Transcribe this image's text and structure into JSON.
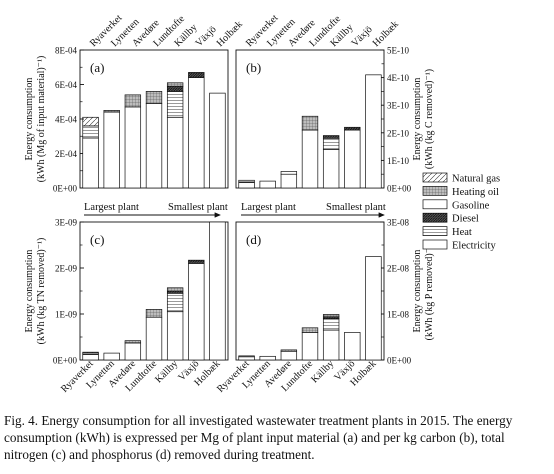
{
  "chart_data": [
    {
      "type": "bar",
      "stacked": true,
      "panel_label": "(a)",
      "categories": [
        "Ryaverket",
        "Lynetten",
        "Avedøre",
        "Lundtofte",
        "Källby",
        "Växjö",
        "Holbæk"
      ],
      "ylabel": "Energy consumption (kWh (Mg of input material)⁻¹)",
      "yticks": [
        "0E+00",
        "2E-04",
        "4E-04",
        "6E-04",
        "8E-04"
      ],
      "ylim": [
        0,
        0.0008
      ],
      "axis_side": "left",
      "series": [
        {
          "name": "Electricity",
          "values": [
            0.00029,
            0.00044,
            0.00047,
            0.00049,
            0.00041,
            0.00064,
            0.00055
          ]
        },
        {
          "name": "Heat",
          "values": [
            7e-05,
            0.0,
            0.0,
            0.0,
            0.00015,
            0.0,
            0.0
          ]
        },
        {
          "name": "Diesel",
          "values": [
            0.0,
            0.0,
            0.0,
            0.0,
            3e-05,
            3e-05,
            0.0
          ]
        },
        {
          "name": "Gasoline",
          "values": [
            0.0,
            0.0,
            0.0,
            0.0,
            0.0,
            0.0,
            0.0
          ]
        },
        {
          "name": "Heating oil",
          "values": [
            0.0,
            1e-05,
            7e-05,
            7e-05,
            2e-05,
            0.0,
            0.0
          ]
        },
        {
          "name": "Natural gas",
          "values": [
            5e-05,
            0.0,
            0.0,
            0.0,
            0.0,
            0.0,
            0.0
          ]
        }
      ]
    },
    {
      "type": "bar",
      "stacked": true,
      "panel_label": "(b)",
      "categories": [
        "Ryaverket",
        "Lynetten",
        "Avedøre",
        "Lundtofte",
        "Källby",
        "Växjö",
        "Holbæk"
      ],
      "ylabel": "Energy consumption (kWh (kg C removed)⁻¹)",
      "yticks": [
        "0E+00",
        "1E-10",
        "2E-10",
        "3E-10",
        "4E-10",
        "5E-10"
      ],
      "ylim": [
        0,
        5e-10
      ],
      "axis_side": "right",
      "series": [
        {
          "name": "Electricity",
          "values": [
            2e-11,
            2.5e-11,
            5e-11,
            2.1e-10,
            1.4e-10,
            2.1e-10,
            4.1e-10
          ]
        },
        {
          "name": "Heat",
          "values": [
            8e-12,
            0.0,
            0.0,
            0.0,
            4e-11,
            0.0,
            0.0
          ]
        },
        {
          "name": "Diesel",
          "values": [
            0.0,
            0.0,
            0.0,
            0.0,
            1e-11,
            1e-11,
            0.0
          ]
        },
        {
          "name": "Gasoline",
          "values": [
            0.0,
            0.0,
            1e-11,
            0.0,
            0.0,
            0.0,
            0.0
          ]
        },
        {
          "name": "Heating oil",
          "values": [
            0.0,
            0.0,
            0.0,
            5e-11,
            0.0,
            0.0,
            0.0
          ]
        },
        {
          "name": "Natural gas",
          "values": [
            0.0,
            0.0,
            0.0,
            0.0,
            0.0,
            0.0,
            0.0
          ]
        }
      ]
    },
    {
      "type": "bar",
      "stacked": true,
      "panel_label": "(c)",
      "categories": [
        "Ryaverket",
        "Lynetten",
        "Avedøre",
        "Lundtofte",
        "Källby",
        "Växjö",
        "Holbæk"
      ],
      "ylabel": "Energy consumption (kWh (kg TN removed)⁻¹)",
      "yticks": [
        "0E+00",
        "1E-09",
        "2E-09",
        "3E-09"
      ],
      "ylim": [
        0,
        3e-09
      ],
      "axis_side": "left",
      "series": [
        {
          "name": "Electricity",
          "values": [
            1.2e-10,
            1.5e-10,
            3.7e-10,
            9.3e-10,
            1.05e-09,
            2.1e-09,
            3e-09
          ]
        },
        {
          "name": "Heat",
          "values": [
            3e-11,
            0.0,
            0.0,
            0.0,
            4e-10,
            0.0,
            0.0
          ]
        },
        {
          "name": "Diesel",
          "values": [
            0.0,
            0.0,
            0.0,
            0.0,
            5e-11,
            7e-11,
            0.0
          ]
        },
        {
          "name": "Gasoline",
          "values": [
            0.0,
            0.0,
            0.0,
            0.0,
            0.0,
            0.0,
            0.0
          ]
        },
        {
          "name": "Heating oil",
          "values": [
            0.0,
            0.0,
            5e-11,
            1.7e-10,
            7e-11,
            0.0,
            0.0
          ]
        },
        {
          "name": "Natural gas",
          "values": [
            2e-11,
            0.0,
            0.0,
            0.0,
            0.0,
            0.0,
            0.0
          ]
        }
      ]
    },
    {
      "type": "bar",
      "stacked": true,
      "panel_label": "(d)",
      "categories": [
        "Ryaverket",
        "Lynetten",
        "Avedøre",
        "Lundtofte",
        "Källby",
        "Växjö",
        "Holbæk"
      ],
      "ylabel": "Energy consumption (kWh (kg P removed)⁻¹)",
      "yticks": [
        "0E+00",
        "1E-08",
        "2E-08",
        "3E-08"
      ],
      "ylim": [
        0,
        3e-08
      ],
      "axis_side": "right",
      "series": [
        {
          "name": "Electricity",
          "values": [
            7e-10,
            8e-10,
            1.9e-09,
            6e-09,
            6.5e-09,
            6e-09,
            2.25e-08
          ]
        },
        {
          "name": "Heat",
          "values": [
            2e-10,
            0.0,
            0.0,
            0.0,
            2.5e-09,
            0.0,
            0.0
          ]
        },
        {
          "name": "Diesel",
          "values": [
            0.0,
            0.0,
            0.0,
            0.0,
            4e-10,
            0.0,
            0.0
          ]
        },
        {
          "name": "Gasoline",
          "values": [
            0.0,
            0.0,
            0.0,
            0.0,
            0.0,
            0.0,
            0.0
          ]
        },
        {
          "name": "Heating oil",
          "values": [
            0.0,
            0.0,
            3e-10,
            1e-09,
            5e-10,
            0.0,
            0.0
          ]
        },
        {
          "name": "Natural gas",
          "values": [
            0.0,
            0.0,
            0.0,
            0.0,
            0.0,
            0.0,
            0.0
          ]
        }
      ]
    }
  ],
  "legend": {
    "placement": "right",
    "items": [
      {
        "name": "Natural gas",
        "pattern": "diagonal"
      },
      {
        "name": "Heating oil",
        "pattern": "grid"
      },
      {
        "name": "Gasoline",
        "pattern": "none"
      },
      {
        "name": "Diesel",
        "pattern": "dense-diagonal"
      },
      {
        "name": "Heat",
        "pattern": "horizontal"
      },
      {
        "name": "Electricity",
        "pattern": "none"
      }
    ]
  },
  "annotations": {
    "largest_plant": "Largest plant",
    "smallest_plant": "Smallest plant"
  },
  "caption": "Fig. 4. Energy consumption for all investigated wastewater treatment plants in 2015. The energy consumption (kWh) is expressed per Mg of plant input material (a) and per kg carbon (b), total nitrogen (c) and phosphorus (d) removed during treatment."
}
